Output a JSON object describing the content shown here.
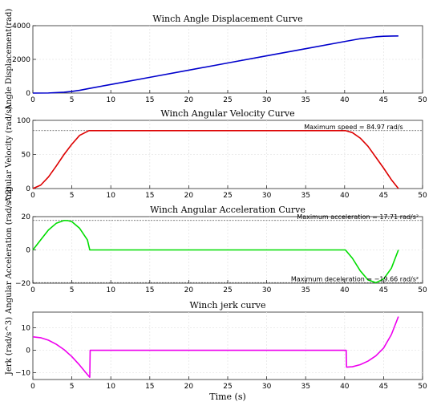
{
  "chart_data": [
    {
      "type": "line",
      "title": "Winch Angle Displacement Curve",
      "xlabel": "",
      "ylabel": "Angle Displacement(rad)",
      "xlim": [
        0,
        50
      ],
      "ylim": [
        0,
        4000
      ],
      "xticks": [
        0,
        5,
        10,
        15,
        20,
        25,
        30,
        35,
        40,
        45,
        50
      ],
      "yticks": [
        0,
        2000,
        4000
      ],
      "grid": true,
      "color": "#0000cc",
      "x": [
        0,
        2,
        4,
        5,
        6,
        7.2,
        10,
        15,
        20,
        25,
        30,
        35,
        40,
        42,
        44,
        45,
        46,
        46.9
      ],
      "y": [
        0,
        6,
        50,
        98,
        165,
        270,
        510,
        935,
        1360,
        1785,
        2210,
        2635,
        3060,
        3225,
        3340,
        3370,
        3385,
        3390
      ],
      "annotations": []
    },
    {
      "type": "line",
      "title": "Winch Angular Velocity Curve",
      "xlabel": "",
      "ylabel": "Angular Velocity (rad/s)",
      "xlim": [
        0,
        50
      ],
      "ylim": [
        0,
        100
      ],
      "xticks": [
        0,
        5,
        10,
        15,
        20,
        25,
        30,
        35,
        40,
        45,
        50
      ],
      "yticks": [
        0,
        50,
        100
      ],
      "grid": true,
      "color": "#dd0000",
      "x": [
        0,
        1,
        2,
        3,
        4,
        5,
        6,
        7.2,
        20,
        30,
        40.1,
        41,
        42,
        43,
        44,
        45,
        46,
        46.9
      ],
      "y": [
        0,
        5,
        17,
        33,
        50,
        65,
        78,
        84.97,
        84.97,
        84.97,
        84.97,
        82,
        74,
        62,
        46,
        30,
        13,
        0
      ],
      "reference_lines": [
        84.97
      ],
      "annotations": [
        {
          "text": "Maximum speed = 84.97 rad/s",
          "x": 47.5,
          "y": 84.97
        }
      ]
    },
    {
      "type": "line",
      "title": "Winch Angular Acceleration Curve",
      "xlabel": "",
      "ylabel": "Angular Acceleration (rad/s^2)",
      "xlim": [
        0,
        50
      ],
      "ylim": [
        -20,
        20
      ],
      "xticks": [
        0,
        5,
        10,
        15,
        20,
        25,
        30,
        35,
        40,
        45,
        50
      ],
      "yticks": [
        -20,
        0,
        20
      ],
      "grid": true,
      "color": "#00dd00",
      "x": [
        0,
        1,
        2,
        3,
        4,
        4.5,
        5,
        6,
        7,
        7.3,
        20,
        30,
        40,
        40.1,
        41,
        42,
        43,
        44,
        45,
        46,
        46.9
      ],
      "y": [
        0,
        6,
        12,
        16,
        17.71,
        17.6,
        17,
        13,
        6,
        0,
        0,
        0,
        0,
        0,
        -5,
        -12.5,
        -18,
        -19.66,
        -17.5,
        -11,
        0
      ],
      "reference_lines": [
        17.71,
        -19.66
      ],
      "annotations": [
        {
          "text": "Maximum acceleration = 17.71 rad/s²",
          "x": 49.5,
          "y": 17.71
        },
        {
          "text": "Maximum deceleration = −19.66 rad/s²",
          "x": 49.5,
          "y": -19.66
        }
      ]
    },
    {
      "type": "line",
      "title": "Winch jerk curve",
      "xlabel": "Time (s)",
      "ylabel": "Jerk (rad/s^3)",
      "xlim": [
        0,
        50
      ],
      "ylim": [
        -13,
        17
      ],
      "xticks": [
        0,
        5,
        10,
        15,
        20,
        25,
        30,
        35,
        40,
        45,
        50
      ],
      "yticks": [
        -10,
        0,
        10
      ],
      "grid": true,
      "color": "#ee00ee",
      "x": [
        0,
        1,
        2,
        3,
        4,
        5,
        6,
        7,
        7.3,
        7.35,
        20,
        30,
        40.2,
        40.25,
        41,
        42,
        43,
        44,
        45,
        46,
        46.9
      ],
      "y": [
        6,
        5.6,
        4.5,
        2.7,
        0.3,
        -2.8,
        -6.6,
        -10.8,
        -12,
        0,
        0,
        0,
        0,
        -7.5,
        -7.3,
        -6.4,
        -4.8,
        -2.5,
        1,
        7,
        15
      ],
      "annotations": []
    }
  ]
}
